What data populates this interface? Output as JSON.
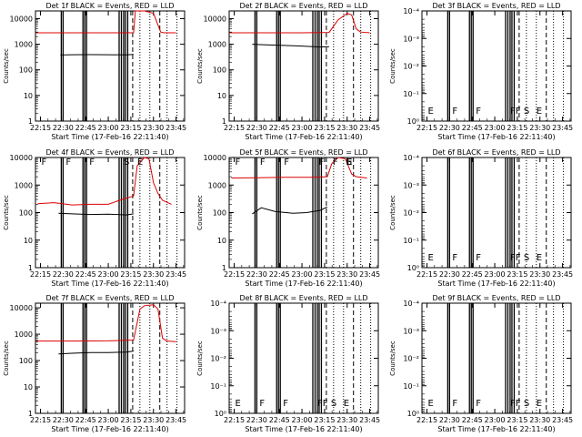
{
  "chart_data": [
    {
      "type": "line",
      "title": "Det 1f BLACK = Events, RED = LLD",
      "xlabel": "Start Time (17-Feb-16 22:11:40)",
      "ylabel": "Counts/sec",
      "yscale": "log",
      "ylim": [
        1,
        20000
      ],
      "xticks": [
        "22:15",
        "22:30",
        "22:45",
        "23:00",
        "23:15",
        "23:30",
        "23:45"
      ],
      "ytick_labels": [
        "1",
        "10",
        "100",
        "1000",
        "10000"
      ],
      "flag_labels": [],
      "series": [
        {
          "name": "Events",
          "color": "#000000",
          "x": [
            22.47,
            22.6,
            22.8,
            23.0,
            23.2,
            23.28
          ],
          "y": [
            380,
            390,
            395,
            390,
            385,
            400
          ]
        },
        {
          "name": "LLD",
          "color": "#dd0000",
          "x": [
            22.2,
            22.6,
            23.0,
            23.28,
            23.3,
            23.35,
            23.4,
            23.45,
            23.5,
            23.58,
            23.62,
            23.75
          ],
          "y": [
            2800,
            2800,
            2800,
            2800,
            20000,
            20000,
            20000,
            18000,
            16000,
            3000,
            2800,
            2800
          ]
        }
      ]
    },
    {
      "type": "line",
      "title": "Det 2f BLACK = Events, RED = LLD",
      "xlabel": "Start Time (17-Feb-16 22:11:40)",
      "ylabel": "Counts/sec",
      "yscale": "log",
      "ylim": [
        1,
        20000
      ],
      "xticks": [
        "22:15",
        "22:30",
        "22:45",
        "23:00",
        "23:15",
        "23:30",
        "23:45"
      ],
      "ytick_labels": [
        "1",
        "10",
        "100",
        "1000",
        "10000"
      ],
      "flag_labels": [],
      "series": [
        {
          "name": "Events",
          "color": "#000000",
          "x": [
            22.45,
            22.6,
            22.8,
            23.0,
            23.2,
            23.3
          ],
          "y": [
            1000,
            950,
            900,
            850,
            780,
            800
          ]
        },
        {
          "name": "LLD",
          "color": "#dd0000",
          "x": [
            22.2,
            22.6,
            23.0,
            23.3,
            23.4,
            23.5,
            23.55,
            23.6,
            23.65,
            23.75
          ],
          "y": [
            2800,
            2800,
            2800,
            2900,
            9000,
            16000,
            14000,
            4000,
            3000,
            2800
          ]
        }
      ]
    },
    {
      "type": "line",
      "title": "Det 3f BLACK = Events, RED = LLD",
      "xlabel": "Start Time (17-Feb-16 22:11:40)",
      "ylabel": "Counts/sec",
      "yscale": "log",
      "ylim": [
        1,
        0.0001
      ],
      "xticks": [
        "22:15",
        "22:30",
        "22:45",
        "23:00",
        "23:15",
        "23:30",
        "23:45"
      ],
      "ytick_labels": [
        "10⁰",
        "10⁻¹",
        "10⁻²",
        "10⁻³",
        "10⁻⁴"
      ],
      "flag_labels": [
        "E",
        "F",
        "F",
        "FF",
        "S",
        "E"
      ],
      "series": []
    },
    {
      "type": "line",
      "title": "Det 4f BLACK = Events, RED = LLD",
      "xlabel": "Start Time (17-Feb-16 22:11:40)",
      "ylabel": "Counts/sec",
      "yscale": "log",
      "ylim": [
        1,
        10000
      ],
      "xticks": [
        "22:15",
        "22:30",
        "22:45",
        "23:00",
        "23:15",
        "23:30",
        "23:45"
      ],
      "ytick_labels": [
        "1",
        "10",
        "100",
        "1000",
        "10000"
      ],
      "flag_labels": [
        "F",
        "F",
        "F",
        "S",
        "E"
      ],
      "series": [
        {
          "name": "Events",
          "color": "#000000",
          "x": [
            22.45,
            22.6,
            22.8,
            23.0,
            23.2,
            23.28
          ],
          "y": [
            95,
            90,
            85,
            88,
            82,
            90
          ]
        },
        {
          "name": "LLD",
          "color": "#dd0000",
          "x": [
            22.22,
            22.4,
            22.6,
            22.8,
            23.0,
            23.15,
            23.28,
            23.32,
            23.4,
            23.45,
            23.5,
            23.55,
            23.6,
            23.7
          ],
          "y": [
            210,
            230,
            190,
            200,
            200,
            300,
            400,
            5000,
            10000,
            9000,
            1200,
            500,
            280,
            200
          ]
        }
      ]
    },
    {
      "type": "line",
      "title": "Det 5f BLACK = Events, RED = LLD",
      "xlabel": "Start Time (17-Feb-16 22:11:40)",
      "ylabel": "Counts/sec",
      "yscale": "log",
      "ylim": [
        1,
        10000
      ],
      "xticks": [
        "22:15",
        "22:30",
        "22:45",
        "23:00",
        "23:15",
        "23:30",
        "23:45"
      ],
      "ytick_labels": [
        "1",
        "10",
        "100",
        "1000",
        "10000"
      ],
      "flag_labels": [
        "F",
        "F",
        "F",
        "F",
        "F",
        "F",
        "S",
        "E"
      ],
      "series": [
        {
          "name": "Events",
          "color": "#000000",
          "x": [
            22.45,
            22.55,
            22.7,
            22.9,
            23.05,
            23.2,
            23.28
          ],
          "y": [
            90,
            150,
            110,
            95,
            100,
            120,
            160
          ]
        },
        {
          "name": "LLD",
          "color": "#dd0000",
          "x": [
            22.22,
            22.5,
            22.8,
            23.1,
            23.28,
            23.33,
            23.4,
            23.48,
            23.55,
            23.6,
            23.72
          ],
          "y": [
            1800,
            1850,
            1900,
            1900,
            2000,
            6000,
            10000,
            9000,
            2500,
            2000,
            1800
          ]
        }
      ]
    },
    {
      "type": "line",
      "title": "Det 6f BLACK = Events, RED = LLD",
      "xlabel": "Start Time (17-Feb-16 22:11:40)",
      "ylabel": "Counts/sec",
      "yscale": "log",
      "ylim": [
        1,
        0.0001
      ],
      "xticks": [
        "22:15",
        "22:30",
        "22:45",
        "23:00",
        "23:15",
        "23:30",
        "23:45"
      ],
      "ytick_labels": [
        "10⁰",
        "10⁻¹",
        "10⁻²",
        "10⁻³",
        "10⁻⁴"
      ],
      "flag_labels": [
        "E",
        "F",
        "F",
        "FF",
        "S",
        "E"
      ],
      "series": []
    },
    {
      "type": "line",
      "title": "Det 7f BLACK = Events, RED = LLD",
      "xlabel": "Start Time (17-Feb-16 22:11:40)",
      "ylabel": "Counts/sec",
      "yscale": "log",
      "ylim": [
        1,
        15000
      ],
      "xticks": [
        "22:15",
        "22:30",
        "22:45",
        "23:00",
        "23:15",
        "23:30",
        "23:45"
      ],
      "ytick_labels": [
        "1",
        "10",
        "100",
        "1000",
        "10000"
      ],
      "flag_labels": [],
      "series": [
        {
          "name": "Events",
          "color": "#000000",
          "x": [
            22.45,
            22.6,
            22.8,
            23.0,
            23.2,
            23.28
          ],
          "y": [
            180,
            190,
            200,
            200,
            210,
            230
          ]
        },
        {
          "name": "LLD",
          "color": "#dd0000",
          "x": [
            22.2,
            22.6,
            23.0,
            23.28,
            23.35,
            23.4,
            23.5,
            23.55,
            23.6,
            23.65,
            23.75
          ],
          "y": [
            550,
            550,
            560,
            600,
            9000,
            12000,
            13000,
            9000,
            700,
            550,
            520
          ]
        }
      ]
    },
    {
      "type": "line",
      "title": "Det 8f BLACK = Events, RED = LLD",
      "xlabel": "Start Time (17-Feb-16 22:11:40)",
      "ylabel": "Counts/sec",
      "yscale": "log",
      "ylim": [
        1,
        0.0001
      ],
      "xticks": [
        "22:15",
        "22:30",
        "22:45",
        "23:00",
        "23:15",
        "23:30",
        "23:45"
      ],
      "ytick_labels": [
        "10⁰",
        "10⁻¹",
        "10⁻²",
        "10⁻³",
        "10⁻⁴"
      ],
      "flag_labels": [
        "E",
        "F",
        "F",
        "FF",
        "S",
        "E"
      ],
      "series": []
    },
    {
      "type": "line",
      "title": "Det 9f BLACK = Events, RED = LLD",
      "xlabel": "Start Time (17-Feb-16 22:11:40)",
      "ylabel": "Counts/sec",
      "yscale": "log",
      "ylim": [
        1,
        0.0001
      ],
      "xticks": [
        "22:15",
        "22:30",
        "22:45",
        "23:00",
        "23:15",
        "23:30",
        "23:45"
      ],
      "ytick_labels": [
        "10⁰",
        "10⁻¹",
        "10⁻²",
        "10⁻³",
        "10⁻⁴"
      ],
      "flag_labels": [
        "E",
        "F",
        "F",
        "FF",
        "S",
        "E"
      ],
      "series": []
    }
  ]
}
